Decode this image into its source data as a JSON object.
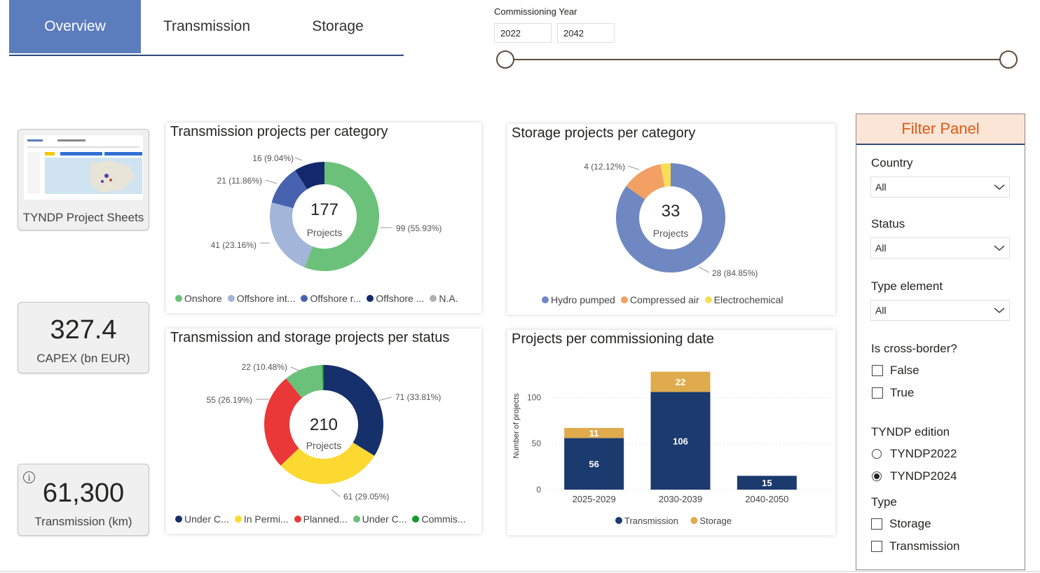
{
  "tabs": [
    "Overview",
    "Transmission",
    "Storage"
  ],
  "year_slicer": {
    "label": "Commissioning Year",
    "from": "2022",
    "to": "2042"
  },
  "cards": {
    "project_sheets": "TYNDP Project Sheets",
    "capex_value": "327.4",
    "capex_label": "CAPEX (bn EUR)",
    "km_value": "61,300",
    "km_label": "Transmission (km)",
    "info_icon": "i"
  },
  "transmission_category": {
    "title": "Transmission projects per category",
    "center_value": "177",
    "center_label": "Projects",
    "labels": [
      "99 (55.93%)",
      "41 (23.16%)",
      "21 (11.86%)",
      "16 (9.04%)"
    ],
    "legend": [
      "Onshore",
      "Offshore int...",
      "Offshore r...",
      "Offshore ...",
      "N.A."
    ]
  },
  "storage_category": {
    "title": "Storage projects per category",
    "center_value": "33",
    "center_label": "Projects",
    "labels": [
      "28 (84.85%)",
      "4 (12.12%)"
    ],
    "legend": [
      "Hydro pumped",
      "Compressed air",
      "Electrochemical"
    ]
  },
  "status": {
    "title": "Transmission and storage projects per status",
    "center_value": "210",
    "center_label": "Projects",
    "labels": [
      "71 (33.81%)",
      "61 (29.05%)",
      "55 (26.19%)",
      "22 (10.48%)"
    ],
    "legend": [
      "Under C...",
      "In Permi...",
      "Planned...",
      "Under C...",
      "Commis..."
    ]
  },
  "chart_data": [
    {
      "type": "pie",
      "title": "Transmission projects per category",
      "categories": [
        "Onshore",
        "Offshore interconnector",
        "Offshore radial",
        "Offshore hybrid",
        "N.A."
      ],
      "values": [
        99,
        41,
        21,
        16,
        0
      ],
      "colors": [
        "#6cc17a",
        "#a3b5d9",
        "#4763b0",
        "#12296b",
        "#b0b0b0"
      ]
    },
    {
      "type": "pie",
      "title": "Storage projects per category",
      "categories": [
        "Hydro pumped",
        "Compressed air",
        "Electrochemical"
      ],
      "values": [
        28,
        4,
        1
      ],
      "colors": [
        "#7088c2",
        "#f2a064",
        "#f9dd55"
      ]
    },
    {
      "type": "pie",
      "title": "Transmission and storage projects per status",
      "categories": [
        "Under Consideration",
        "In Permitting",
        "Planned",
        "Under Construction",
        "Commissioned"
      ],
      "values": [
        71,
        61,
        55,
        22,
        1
      ],
      "colors": [
        "#15306b",
        "#fcd930",
        "#ea3838",
        "#6cc17a",
        "#119c2b"
      ]
    },
    {
      "type": "bar",
      "title": "Projects per commissioning date",
      "categories": [
        "2025-2029",
        "2030-2039",
        "2040-2050"
      ],
      "series": [
        {
          "name": "Transmission",
          "values": [
            56,
            106,
            15
          ],
          "color": "#1b3a6e"
        },
        {
          "name": "Storage",
          "values": [
            11,
            22,
            0
          ],
          "color": "#dfab4c"
        }
      ],
      "ylabel": "Number of projects",
      "yticks": [
        0,
        50,
        100
      ],
      "ylim": [
        0,
        130
      ],
      "stacked": true
    }
  ],
  "filter_panel": {
    "title": "Filter Panel",
    "country_label": "Country",
    "country_value": "All",
    "status_label": "Status",
    "status_value": "All",
    "type_element_label": "Type element",
    "type_element_value": "All",
    "cross_border_label": "Is cross-border?",
    "cross_border_options": [
      "False",
      "True"
    ],
    "edition_label": "TYNDP edition",
    "edition_options": [
      "TYNDP2022",
      "TYNDP2024"
    ],
    "edition_selected": 1,
    "type_label": "Type",
    "type_options": [
      "Storage",
      "Transmission"
    ]
  }
}
